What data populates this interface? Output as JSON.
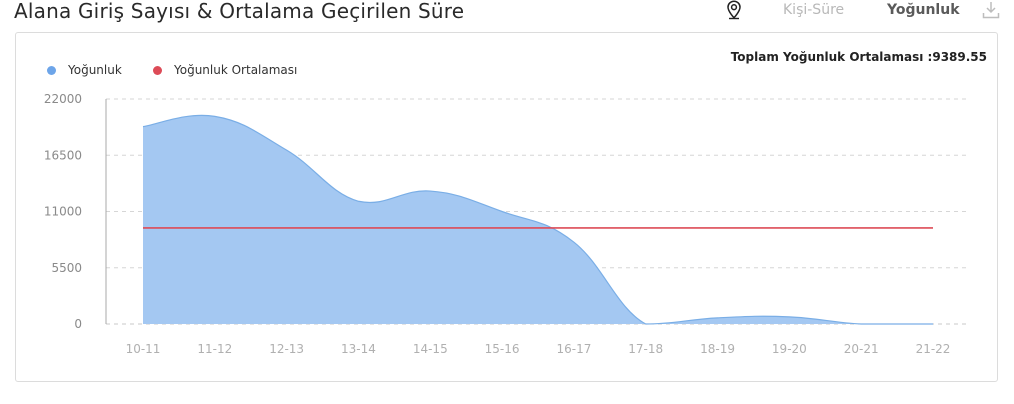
{
  "page": {
    "title": "Alana Giriş Sayısı & Ortalama Geçirilen Süre"
  },
  "toolbar": {
    "pin_icon": "map-pin-icon",
    "person_time_label": "Kişi-Süre",
    "density_label": "Yoğunluk",
    "download_icon": "download-icon"
  },
  "card": {
    "total_label": "Toplam Yoğunluk Ortalaması :9389.55"
  },
  "chart_data": {
    "type": "area",
    "title": "Alana Giriş Sayısı & Ortalama Geçirilen Süre",
    "xlabel": "",
    "ylabel": "",
    "categories": [
      "10-11",
      "11-12",
      "12-13",
      "13-14",
      "14-15",
      "15-16",
      "16-17",
      "17-18",
      "18-19",
      "19-20",
      "20-21",
      "21-22"
    ],
    "yticks": [
      0,
      5500,
      11000,
      16500,
      22000
    ],
    "ylim": [
      0,
      22000
    ],
    "grid": true,
    "legend_position": "top-left",
    "series": [
      {
        "name": "Yoğunluk",
        "type": "area",
        "color": "#a4c8f2",
        "stroke": "#7aaee6",
        "values": [
          19300,
          20300,
          17000,
          12000,
          13000,
          11000,
          8000,
          0,
          600,
          700,
          0,
          0
        ]
      },
      {
        "name": "Yoğunluk Ortalaması",
        "type": "line",
        "color": "#dd4b57",
        "values": [
          9389.55,
          9389.55,
          9389.55,
          9389.55,
          9389.55,
          9389.55,
          9389.55,
          9389.55,
          9389.55,
          9389.55,
          9389.55,
          9389.55
        ]
      }
    ]
  }
}
